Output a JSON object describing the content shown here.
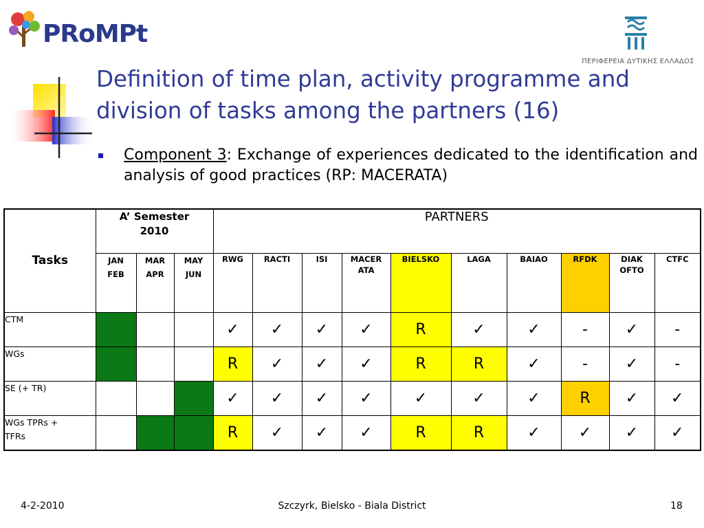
{
  "logo": {
    "text": "PRoMPt"
  },
  "region_logo": {
    "text": "ΠΕΡΙΦΕΡΕΙΑ ΔΥΤΙΚΗΣ ΕΛΛΑΔΟΣ"
  },
  "title": {
    "line1": "Definition of time plan, activity programme and",
    "line2": "division of tasks among the partners (16)"
  },
  "bullet": {
    "label": "Component 3",
    "text": ": Exchange of experiences dedicated to the identification and analysis of good practices (RP: MACERATA)"
  },
  "table": {
    "tasks_header": "Tasks",
    "semester_header_1": "A’  Semester",
    "semester_header_2": "2010",
    "partners_header": "PARTNERS",
    "months": [
      {
        "l1": "JAN",
        "l2": "FEB"
      },
      {
        "l1": "MAR",
        "l2": "APR"
      },
      {
        "l1": "MAY",
        "l2": "JUN"
      }
    ],
    "partners": [
      {
        "l1": "RWG",
        "l2": ""
      },
      {
        "l1": "RACTI",
        "l2": ""
      },
      {
        "l1": "ISI",
        "l2": ""
      },
      {
        "l1": "MACER",
        "l2": "ATA"
      },
      {
        "l1": "BIELSKO",
        "l2": ""
      },
      {
        "l1": "LAGA",
        "l2": ""
      },
      {
        "l1": "BAIAO",
        "l2": ""
      },
      {
        "l1": "RFDK",
        "l2": ""
      },
      {
        "l1": "DIAK",
        "l2": "OFTO"
      },
      {
        "l1": "CTFC",
        "l2": ""
      }
    ],
    "rows": [
      {
        "task_l1": "CTM",
        "task_l2": "",
        "months": [
          "green",
          "",
          ""
        ],
        "cells": [
          "✓",
          "✓",
          "✓",
          "✓",
          "R",
          "✓",
          "✓",
          "-",
          "✓",
          "-"
        ]
      },
      {
        "task_l1": "WGs",
        "task_l2": "",
        "months": [
          "green",
          "",
          ""
        ],
        "cells": [
          "R",
          "✓",
          "✓",
          "✓",
          "R",
          "R",
          "✓",
          "-",
          "✓",
          "-"
        ]
      },
      {
        "task_l1": "SE (+ TR)",
        "task_l2": "",
        "months": [
          "",
          "",
          "green"
        ],
        "cells": [
          "✓",
          "✓",
          "✓",
          "✓",
          "✓",
          "✓",
          "✓",
          "R",
          "✓",
          "✓"
        ]
      },
      {
        "task_l1": "WGs TPRs +",
        "task_l2": "TFRs",
        "months": [
          "",
          "green",
          "green"
        ],
        "cells": [
          "R",
          "✓",
          "✓",
          "✓",
          "R",
          "R",
          "✓",
          "✓",
          "✓",
          "✓"
        ]
      }
    ]
  },
  "footer": {
    "date": "4-2-2010",
    "location": "Szczyrk, Bielsko - Biala District",
    "page": "18"
  },
  "colors": {
    "title": "#2f3b96",
    "month_green": "#0b7a16",
    "lead_yellow": "#ffff00",
    "rfdk_orange": "#fed000"
  }
}
